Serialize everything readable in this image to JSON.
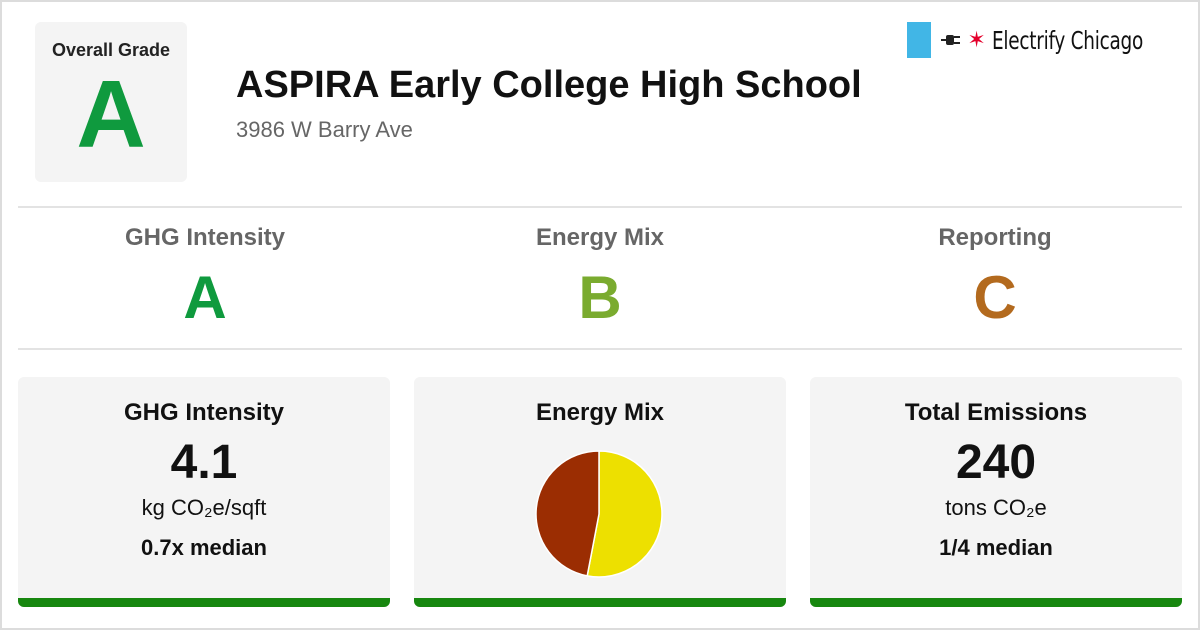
{
  "overall": {
    "label": "Overall Grade",
    "grade": "A",
    "color": "#0f9a3e"
  },
  "school": {
    "name": "ASPIRA Early College High School",
    "address": "3986 W Barry Ave"
  },
  "logo": {
    "text": "Electrify Chicago",
    "bar_color": "#41b6e6",
    "star": "✶",
    "star_color": "#e4002b",
    "plug_icon": "plug-icon"
  },
  "grades": [
    {
      "label": "GHG Intensity",
      "grade": "A",
      "color": "#0f9a3e"
    },
    {
      "label": "Energy Mix",
      "grade": "B",
      "color": "#7aab2f"
    },
    {
      "label": "Reporting",
      "grade": "C",
      "color": "#b36a1e"
    }
  ],
  "cards": {
    "ghg": {
      "title": "GHG Intensity",
      "value": "4.1",
      "unit": "kg CO₂e/sqft",
      "note": "0.7x median",
      "bar_color": "#17870f"
    },
    "energy": {
      "title": "Energy Mix",
      "bar_color": "#17870f"
    },
    "emissions": {
      "title": "Total Emissions",
      "value": "240",
      "unit": "tons CO₂e",
      "note": "1/4 median",
      "bar_color": "#17870f"
    }
  },
  "chart_data": {
    "type": "pie",
    "title": "Energy Mix",
    "slices": [
      {
        "value": 0.53,
        "color": "#ede000"
      },
      {
        "value": 0.47,
        "color": "#9b2d02"
      }
    ],
    "start": "top",
    "direction": "clockwise"
  }
}
